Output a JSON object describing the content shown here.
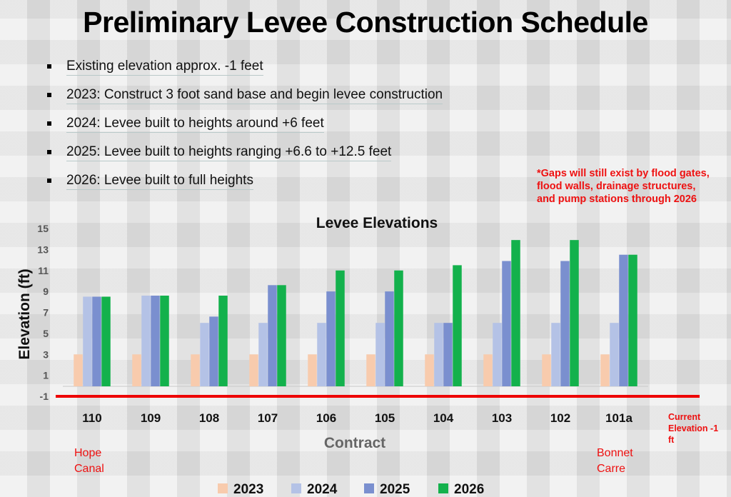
{
  "slide": {
    "title": "Preliminary Levee Construction Schedule",
    "bullets": [
      "Existing elevation approx. -1 feet",
      "2023: Construct 3 foot sand base and begin levee construction",
      "2024: Levee built to heights around +6 feet",
      "2025: Levee built to heights ranging +6.6 to +12.5 feet",
      "2026: Levee built to full heights"
    ],
    "gaps_note": "*Gaps will still exist by flood gates, flood walls, drainage structures, and pump stations through 2026",
    "left_label": "Hope Canal",
    "right_label": "Bonnet Carre",
    "current_elevation_label": "Current Elevation -1 ft"
  },
  "colors": {
    "2023": "#f8cbad",
    "2024": "#b4c2e6",
    "2025": "#7a8fcf",
    "2026": "#13b14c",
    "baseline": "#ee0000",
    "annotation": "#ee1111"
  },
  "chart_data": {
    "type": "bar",
    "title": "Levee Elevations",
    "xlabel": "Contract",
    "ylabel": "Elevation (ft)",
    "categories": [
      "110",
      "109",
      "108",
      "107",
      "106",
      "105",
      "104",
      "103",
      "102",
      "101a"
    ],
    "series": [
      {
        "name": "2023",
        "values": [
          3,
          3,
          3,
          3,
          3,
          3,
          3,
          3,
          3,
          3
        ]
      },
      {
        "name": "2024",
        "values": [
          8.5,
          8.6,
          6,
          6,
          6,
          6,
          6,
          6,
          6,
          6
        ]
      },
      {
        "name": "2025",
        "values": [
          8.5,
          8.6,
          6.6,
          9.6,
          9,
          9,
          6,
          11.9,
          11.9,
          12.5
        ]
      },
      {
        "name": "2026",
        "values": [
          8.5,
          8.6,
          8.6,
          9.6,
          11,
          11,
          11.5,
          13.9,
          13.9,
          12.5
        ]
      }
    ],
    "yticks": [
      -1,
      1,
      3,
      5,
      7,
      9,
      11,
      13,
      15
    ],
    "ylim": [
      -1,
      15
    ],
    "baseline_value": -1,
    "legend_position": "bottom",
    "grid": false
  }
}
